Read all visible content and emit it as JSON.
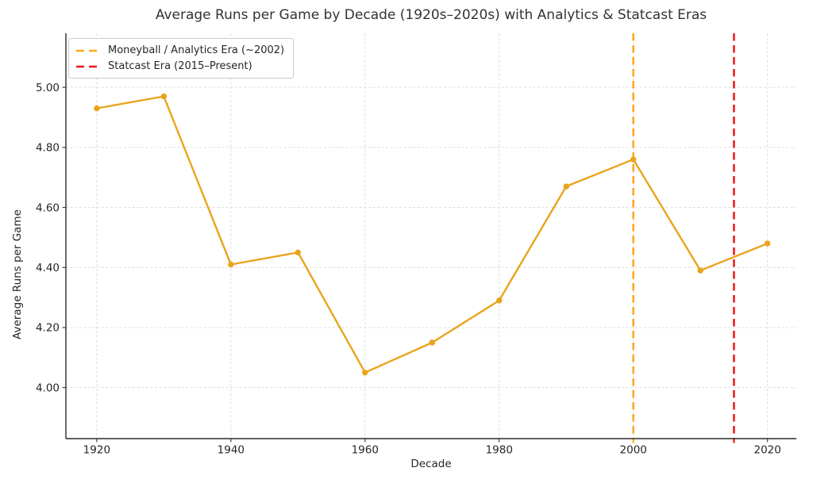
{
  "chart_data": {
    "type": "line",
    "title": "Average Runs per Game by Decade (1920s–2020s) with Analytics & Statcast Eras",
    "xlabel": "Decade",
    "ylabel": "Average Runs per Game",
    "x": [
      1920,
      1930,
      1940,
      1950,
      1960,
      1970,
      1980,
      1990,
      2000,
      2010,
      2020
    ],
    "series": [
      {
        "name": "Average Runs per Game",
        "values": [
          4.93,
          4.97,
          4.41,
          4.45,
          4.05,
          4.15,
          4.29,
          4.67,
          4.76,
          4.39,
          4.48
        ],
        "color": "#E9A41C",
        "marker": "circle",
        "line_width": 2.4
      }
    ],
    "xlim": [
      1915.4,
      2024.3
    ],
    "ylim": [
      3.83,
      5.18
    ],
    "xticks": [
      1920,
      1940,
      1960,
      1980,
      2000,
      2020
    ],
    "xtick_labels": [
      "1920",
      "1940",
      "1960",
      "1980",
      "2000",
      "2020"
    ],
    "yticks": [
      4.0,
      4.2,
      4.4,
      4.6,
      4.8,
      5.0
    ],
    "ytick_labels": [
      "4.00",
      "4.20",
      "4.40",
      "4.60",
      "4.80",
      "5.00"
    ],
    "grid": true,
    "grid_color": "#DCDCDC",
    "spine_color": "#2B2B2B",
    "tick_text_color": "#262626",
    "vlines": [
      {
        "x": 2000,
        "color": "#FFA51E",
        "label": "Moneyball / Analytics Era (~2002)"
      },
      {
        "x": 2015,
        "color": "#EF1515",
        "label": "Statcast Era (2015–Present)"
      }
    ],
    "legend": {
      "position": "upper-left"
    }
  }
}
